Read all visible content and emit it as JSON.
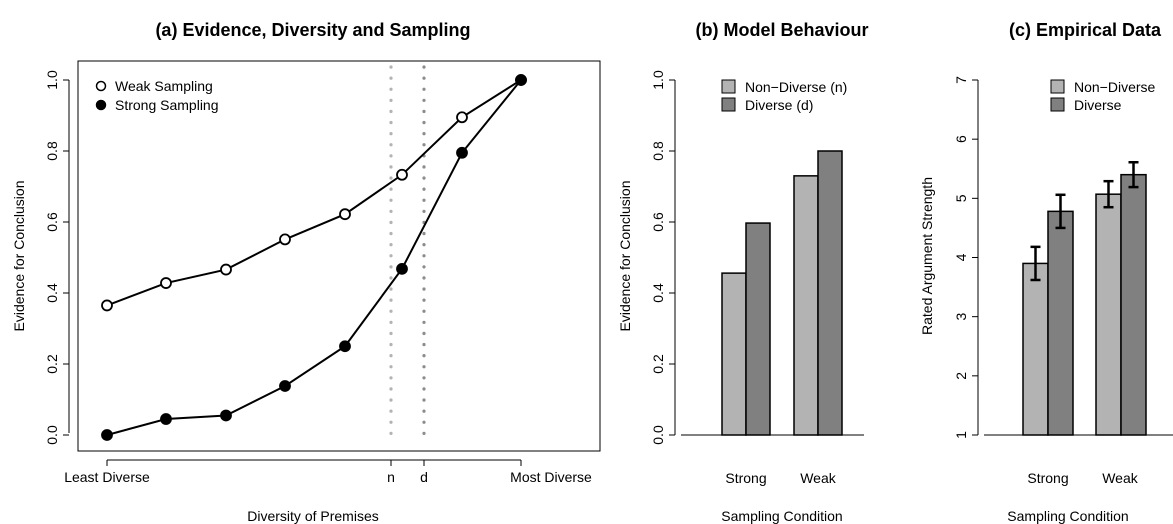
{
  "chart_data": [
    {
      "type": "line",
      "title": "(a) Evidence, Diversity and Sampling",
      "xlabel": "Diversity of Premises",
      "ylabel": "Evidence for Conclusion",
      "ylim": [
        0,
        1
      ],
      "yticks": [
        "0.0",
        "0.2",
        "0.4",
        "0.6",
        "0.8",
        "1.0"
      ],
      "xticks": [
        "Least Diverse",
        "n",
        "d",
        "Most Diverse"
      ],
      "x": [
        1,
        2,
        3,
        4,
        5,
        6,
        7,
        8
      ],
      "series": [
        {
          "name": "Weak Sampling",
          "values": [
            0.365,
            0.428,
            0.466,
            0.551,
            0.622,
            0.733,
            0.895,
            1.0
          ]
        },
        {
          "name": "Strong Sampling",
          "values": [
            0.0,
            0.045,
            0.055,
            0.138,
            0.25,
            0.468,
            0.795,
            1.0
          ]
        }
      ],
      "reference_lines": [
        "n",
        "d"
      ],
      "legend": "top-left",
      "grid": false
    },
    {
      "type": "bar",
      "title": "(b) Model Behaviour",
      "xlabel": "Sampling Condition",
      "ylabel": "Evidence for Conclusion",
      "ylim": [
        0,
        1
      ],
      "yticks": [
        "0.0",
        "0.2",
        "0.4",
        "0.6",
        "0.8",
        "1.0"
      ],
      "categories": [
        "Strong",
        "Weak"
      ],
      "series": [
        {
          "name": "Non−Diverse (n)",
          "values": [
            0.456,
            0.73
          ],
          "color": "#b3b3b3"
        },
        {
          "name": "Diverse (d)",
          "values": [
            0.597,
            0.8
          ],
          "color": "#808080"
        }
      ],
      "legend": "top-right",
      "grid": false
    },
    {
      "type": "bar",
      "title": "(c) Empirical Data",
      "xlabel": "Sampling Condition",
      "ylabel": "Rated Argument Strength",
      "ylim": [
        1,
        7
      ],
      "yticks": [
        "1",
        "2",
        "3",
        "4",
        "5",
        "6",
        "7"
      ],
      "categories": [
        "Strong",
        "Weak"
      ],
      "series": [
        {
          "name": "Non−Diverse",
          "values": [
            3.9,
            5.07
          ],
          "errors": [
            0.28,
            0.22
          ],
          "color": "#b3b3b3"
        },
        {
          "name": "Diverse",
          "values": [
            4.78,
            5.4
          ],
          "errors": [
            0.28,
            0.21
          ],
          "color": "#808080"
        }
      ],
      "legend": "top-right",
      "grid": false
    }
  ],
  "colors": {
    "light_bar": "#b3b3b3",
    "dark_bar": "#808080",
    "ref_light": "#b3b3b3",
    "ref_dark": "#8c8c8c"
  }
}
